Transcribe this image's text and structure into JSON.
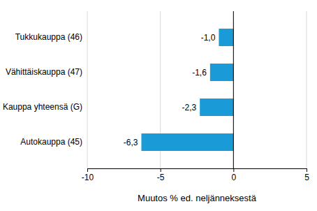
{
  "chart_data": {
    "type": "bar",
    "orientation": "horizontal",
    "categories": [
      "Tukkukauppa (46)",
      "Vähittäiskauppa (47)",
      "Kauppa yhteensä (G)",
      "Autokauppa (45)"
    ],
    "values": [
      -1.0,
      -1.6,
      -2.3,
      -6.3
    ],
    "value_labels": [
      "-1,0",
      "-1,6",
      "-2,3",
      "-6,3"
    ],
    "color": "#1a9bd7",
    "xlabel": "Muutos % ed. neljänneksestä",
    "xlim": [
      -10,
      5
    ],
    "xticks": [
      -10,
      -5,
      0,
      5
    ],
    "grid": true,
    "data_labels": true
  }
}
